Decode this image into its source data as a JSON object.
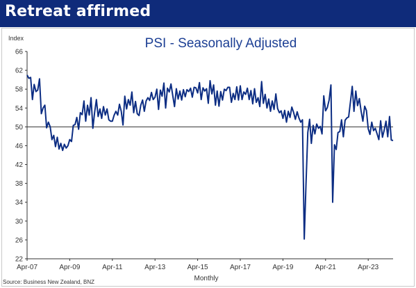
{
  "slide": {
    "title": "Retreat affirmed",
    "source": "Source: Business New Zealand, BNZ",
    "colors": {
      "banner": "#0f2b7a",
      "title_text": "#ffffff",
      "line": "#0c2d83",
      "reference_line": "#333333"
    }
  },
  "chart_data": {
    "type": "line",
    "title": "PSI - Seasonally Adjusted",
    "ylabel": "Index",
    "xlabel": "Monthly",
    "ylim": [
      22,
      66
    ],
    "xlim": [
      "2007-04",
      "2024-06"
    ],
    "y_ticks": [
      22,
      26,
      30,
      34,
      38,
      42,
      46,
      50,
      54,
      58,
      62,
      66
    ],
    "x_ticks": [
      "Apr-07",
      "Apr-09",
      "Apr-11",
      "Apr-13",
      "Apr-15",
      "Apr-17",
      "Apr-19",
      "Apr-21",
      "Apr-23"
    ],
    "x_tick_dates": [
      "2007-04",
      "2009-04",
      "2011-04",
      "2013-04",
      "2015-04",
      "2017-04",
      "2019-04",
      "2021-04",
      "2023-04"
    ],
    "reference_line": 50,
    "grid": false,
    "legend": "none",
    "series": [
      {
        "points": [
          [
            "2007-04",
            61
          ],
          [
            "2007-05",
            60.3
          ],
          [
            "2007-06",
            60.5
          ],
          [
            "2007-07",
            55.8
          ],
          [
            "2007-08",
            59
          ],
          [
            "2007-09",
            57.5
          ],
          [
            "2007-10",
            57.8
          ],
          [
            "2007-11",
            60.2
          ],
          [
            "2007-12",
            52.8
          ],
          [
            "2008-01",
            54
          ],
          [
            "2008-02",
            54.6
          ],
          [
            "2008-03",
            49.8
          ],
          [
            "2008-04",
            51
          ],
          [
            "2008-05",
            50
          ],
          [
            "2008-06",
            47.3
          ],
          [
            "2008-07",
            48.2
          ],
          [
            "2008-08",
            45.8
          ],
          [
            "2008-09",
            47.8
          ],
          [
            "2008-10",
            45.3
          ],
          [
            "2008-11",
            46.5
          ],
          [
            "2008-12",
            45
          ],
          [
            "2009-01",
            46.3
          ],
          [
            "2009-02",
            45.5
          ],
          [
            "2009-03",
            46
          ],
          [
            "2009-04",
            47.3
          ],
          [
            "2009-05",
            46.9
          ],
          [
            "2009-06",
            50.3
          ],
          [
            "2009-07",
            50.5
          ],
          [
            "2009-08",
            52
          ],
          [
            "2009-09",
            49.5
          ],
          [
            "2009-10",
            53
          ],
          [
            "2009-11",
            52.6
          ],
          [
            "2009-12",
            55.5
          ],
          [
            "2010-01",
            51.2
          ],
          [
            "2010-02",
            54.6
          ],
          [
            "2010-03",
            52.5
          ],
          [
            "2010-04",
            56.2
          ],
          [
            "2010-05",
            49.7
          ],
          [
            "2010-06",
            53
          ],
          [
            "2010-07",
            55.8
          ],
          [
            "2010-08",
            52.2
          ],
          [
            "2010-09",
            53.8
          ],
          [
            "2010-10",
            51.8
          ],
          [
            "2010-11",
            54.3
          ],
          [
            "2010-12",
            52.5
          ],
          [
            "2011-01",
            53.8
          ],
          [
            "2011-02",
            51.5
          ],
          [
            "2011-03",
            51.2
          ],
          [
            "2011-04",
            51.2
          ],
          [
            "2011-05",
            52.5
          ],
          [
            "2011-06",
            53.3
          ],
          [
            "2011-07",
            52.5
          ],
          [
            "2011-08",
            54.8
          ],
          [
            "2011-09",
            53.3
          ],
          [
            "2011-10",
            50.4
          ],
          [
            "2011-11",
            56.5
          ],
          [
            "2011-12",
            53.8
          ],
          [
            "2012-01",
            55.8
          ],
          [
            "2012-02",
            54.6
          ],
          [
            "2012-03",
            57.4
          ],
          [
            "2012-04",
            53
          ],
          [
            "2012-05",
            55.4
          ],
          [
            "2012-06",
            52.8
          ],
          [
            "2012-07",
            52.4
          ],
          [
            "2012-08",
            54.6
          ],
          [
            "2012-09",
            55.7
          ],
          [
            "2012-10",
            53.3
          ],
          [
            "2012-11",
            55.5
          ],
          [
            "2012-12",
            56.2
          ],
          [
            "2013-01",
            55.6
          ],
          [
            "2013-02",
            57.3
          ],
          [
            "2013-03",
            55.8
          ],
          [
            "2013-04",
            56.3
          ],
          [
            "2013-05",
            58
          ],
          [
            "2013-06",
            53.7
          ],
          [
            "2013-07",
            57.8
          ],
          [
            "2013-08",
            56.5
          ],
          [
            "2013-09",
            59.3
          ],
          [
            "2013-10",
            54
          ],
          [
            "2013-11",
            58.2
          ],
          [
            "2013-12",
            57.4
          ],
          [
            "2014-01",
            59.1
          ],
          [
            "2014-02",
            56.6
          ],
          [
            "2014-03",
            54.3
          ],
          [
            "2014-04",
            58.1
          ],
          [
            "2014-05",
            55.9
          ],
          [
            "2014-06",
            57.6
          ],
          [
            "2014-07",
            55.7
          ],
          [
            "2014-08",
            57.9
          ],
          [
            "2014-09",
            56.4
          ],
          [
            "2014-10",
            57.9
          ],
          [
            "2014-11",
            57.5
          ],
          [
            "2014-12",
            58.2
          ],
          [
            "2015-01",
            56.3
          ],
          [
            "2015-02",
            58.4
          ],
          [
            "2015-03",
            58.3
          ],
          [
            "2015-04",
            57.2
          ],
          [
            "2015-05",
            59.4
          ],
          [
            "2015-06",
            55.8
          ],
          [
            "2015-07",
            58.3
          ],
          [
            "2015-08",
            57.6
          ],
          [
            "2015-09",
            58.1
          ],
          [
            "2015-10",
            55
          ],
          [
            "2015-11",
            59.8
          ],
          [
            "2015-12",
            57
          ],
          [
            "2016-01",
            58.9
          ],
          [
            "2016-02",
            54.6
          ],
          [
            "2016-03",
            57.6
          ],
          [
            "2016-04",
            54.4
          ],
          [
            "2016-05",
            57.5
          ],
          [
            "2016-06",
            55.7
          ],
          [
            "2016-07",
            58
          ],
          [
            "2016-08",
            57.7
          ],
          [
            "2016-09",
            58.4
          ],
          [
            "2016-10",
            58.4
          ],
          [
            "2016-11",
            55.2
          ],
          [
            "2016-12",
            57.1
          ],
          [
            "2017-01",
            55.8
          ],
          [
            "2017-02",
            58.5
          ],
          [
            "2017-03",
            55.7
          ],
          [
            "2017-04",
            58.7
          ],
          [
            "2017-05",
            55.8
          ],
          [
            "2017-06",
            57.4
          ],
          [
            "2017-07",
            56.9
          ],
          [
            "2017-08",
            58.2
          ],
          [
            "2017-09",
            55.8
          ],
          [
            "2017-10",
            57.7
          ],
          [
            "2017-11",
            54.9
          ],
          [
            "2017-12",
            58.1
          ],
          [
            "2018-01",
            55.2
          ],
          [
            "2018-02",
            56.2
          ],
          [
            "2018-03",
            54.3
          ],
          [
            "2018-04",
            59.6
          ],
          [
            "2018-05",
            55
          ],
          [
            "2018-06",
            56.9
          ],
          [
            "2018-07",
            54
          ],
          [
            "2018-08",
            55.9
          ],
          [
            "2018-09",
            53.3
          ],
          [
            "2018-10",
            55.5
          ],
          [
            "2018-11",
            53.7
          ],
          [
            "2018-12",
            57
          ],
          [
            "2019-01",
            53.9
          ],
          [
            "2019-02",
            53
          ],
          [
            "2019-03",
            53.4
          ],
          [
            "2019-04",
            51.8
          ],
          [
            "2019-05",
            53.5
          ],
          [
            "2019-06",
            51
          ],
          [
            "2019-07",
            53.3
          ],
          [
            "2019-08",
            52
          ],
          [
            "2019-09",
            54.2
          ],
          [
            "2019-10",
            53.1
          ],
          [
            "2019-11",
            51.6
          ],
          [
            "2019-12",
            53.2
          ],
          [
            "2020-01",
            51.9
          ],
          [
            "2020-02",
            51
          ],
          [
            "2020-03",
            51.5
          ],
          [
            "2020-04",
            26.2
          ],
          [
            "2020-05",
            37.8
          ],
          [
            "2020-06",
            48.8
          ],
          [
            "2020-07",
            51.6
          ],
          [
            "2020-08",
            46.5
          ],
          [
            "2020-09",
            50.3
          ],
          [
            "2020-10",
            48.5
          ],
          [
            "2020-11",
            50.6
          ],
          [
            "2020-12",
            49.7
          ],
          [
            "2021-01",
            50.1
          ],
          [
            "2021-02",
            48.5
          ],
          [
            "2021-03",
            56.6
          ],
          [
            "2021-04",
            53.4
          ],
          [
            "2021-05",
            54.1
          ],
          [
            "2021-06",
            55.7
          ],
          [
            "2021-07",
            58.9
          ],
          [
            "2021-08",
            34
          ],
          [
            "2021-09",
            46.2
          ],
          [
            "2021-10",
            45.2
          ],
          [
            "2021-11",
            48.8
          ],
          [
            "2021-12",
            49
          ],
          [
            "2022-01",
            51.5
          ],
          [
            "2022-02",
            47.9
          ],
          [
            "2022-03",
            51.4
          ],
          [
            "2022-04",
            51.9
          ],
          [
            "2022-05",
            52.1
          ],
          [
            "2022-06",
            55.3
          ],
          [
            "2022-07",
            58.6
          ],
          [
            "2022-08",
            53.3
          ],
          [
            "2022-09",
            57.6
          ],
          [
            "2022-10",
            54.5
          ],
          [
            "2022-11",
            56
          ],
          [
            "2022-12",
            53.3
          ],
          [
            "2023-01",
            51.2
          ],
          [
            "2023-02",
            54.4
          ],
          [
            "2023-03",
            53.5
          ],
          [
            "2023-04",
            49.6
          ],
          [
            "2023-05",
            48.4
          ],
          [
            "2023-06",
            51
          ],
          [
            "2023-07",
            49.2
          ],
          [
            "2023-08",
            49.7
          ],
          [
            "2023-09",
            48.5
          ],
          [
            "2023-10",
            47.3
          ],
          [
            "2023-11",
            51.3
          ],
          [
            "2023-12",
            47.8
          ],
          [
            "2024-01",
            49.3
          ],
          [
            "2024-02",
            51.2
          ],
          [
            "2024-03",
            47.9
          ],
          [
            "2024-04",
            52.2
          ],
          [
            "2024-05",
            47.2
          ],
          [
            "2024-06",
            47.1
          ]
        ]
      }
    ]
  }
}
